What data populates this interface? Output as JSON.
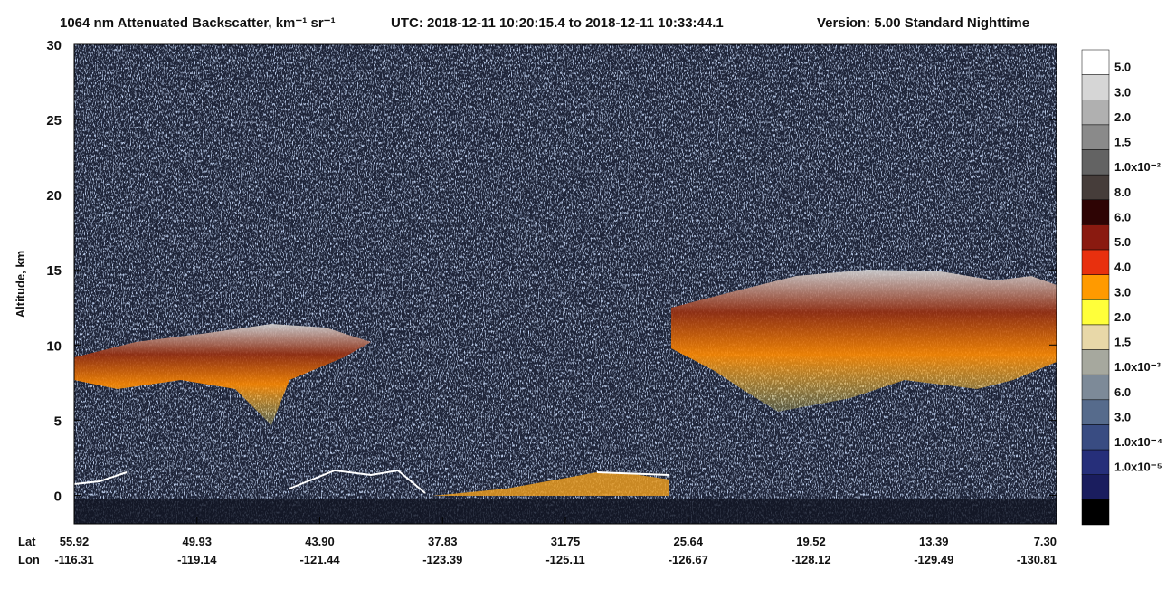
{
  "chart_data": {
    "type": "curtain",
    "title": "1064 nm Attenuated Backscatter, km⁻¹ sr⁻¹",
    "subtitle": "UTC:  2018-12-11 10:20:15.4  to  2018-12-11 10:33:44.1",
    "version": "Version: 5.00  Standard  Nighttime",
    "ylabel": "Altitude, km",
    "ylim": [
      -1.9,
      30
    ],
    "yticks": [
      0,
      5,
      10,
      15,
      20,
      25,
      30
    ],
    "x_row_labels": [
      "Lat",
      "Lon"
    ],
    "lat": [
      55.92,
      49.93,
      {
        "value": 43.9,
        "label": "43.90"
      },
      37.83,
      31.75,
      25.64,
      19.52,
      13.39,
      {
        "value": 7.3,
        "label": "7.30"
      }
    ],
    "lon": [
      -116.31,
      -119.14,
      -121.44,
      -123.39,
      -125.11,
      -126.67,
      -128.12,
      -129.49,
      -130.81
    ],
    "colorbar": {
      "colors": [
        "#ffffff",
        "#d6d6d6",
        "#b0b0b0",
        "#8a8a8a",
        "#636363",
        "#463d3a",
        "#2e0404",
        "#8a1a10",
        "#e8300e",
        "#ff9a00",
        "#ffff3a",
        "#e8d8a8",
        "#a6a89e",
        "#7d8a98",
        "#566b8c",
        "#394c82",
        "#262f7a",
        "#1a1d5e",
        "#000000"
      ],
      "labels": [
        "5.0",
        "3.0",
        "2.0",
        "1.5",
        "1.0x10⁻²",
        "8.0",
        "6.0",
        "5.0",
        "4.0",
        "3.0",
        "2.0",
        "1.5",
        "1.0x10⁻³",
        "6.0",
        "3.0",
        "1.0x10⁻⁴",
        "1.0x10⁻⁵"
      ]
    }
  }
}
